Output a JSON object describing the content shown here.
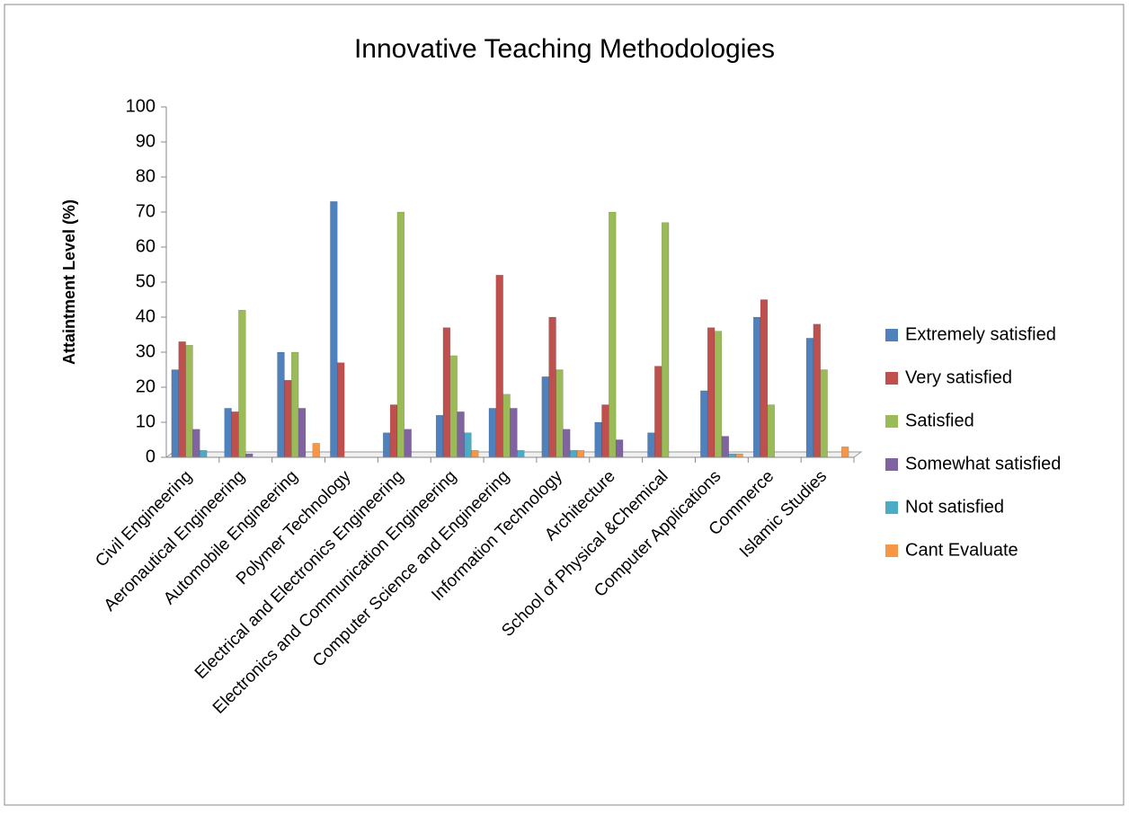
{
  "chart_data": {
    "type": "bar",
    "title": "Innovative Teaching Methodologies",
    "y_label": "Attaintment Level  (%)",
    "categories": [
      "Civil Engineering",
      "Aeronautical Engineering",
      "Automobile Engineering",
      "Polymer Technology",
      "Electrical and Electronics Engineering",
      "Electronics and Communication Engineering",
      "Computer Science and Engineering",
      "Information Technology",
      "Architecture",
      "School of Physical &Chemical",
      "Computer Applications",
      "Commerce",
      "Islamic Studies"
    ],
    "series": [
      {
        "name": "Extremely satisfied",
        "color": "#4f81bd",
        "values": [
          25,
          14,
          30,
          73,
          7,
          12,
          14,
          23,
          10,
          7,
          19,
          40,
          34
        ]
      },
      {
        "name": "Very satisfied",
        "color": "#c0504d",
        "values": [
          33,
          13,
          22,
          27,
          15,
          37,
          52,
          40,
          15,
          26,
          37,
          45,
          38
        ]
      },
      {
        "name": "Satisfied",
        "color": "#9bbb59",
        "values": [
          32,
          42,
          30,
          0,
          70,
          29,
          18,
          25,
          70,
          67,
          36,
          15,
          25
        ]
      },
      {
        "name": "Somewhat satisfied",
        "color": "#8064a2",
        "values": [
          8,
          1,
          14,
          0,
          8,
          13,
          14,
          8,
          5,
          0,
          6,
          0,
          0
        ]
      },
      {
        "name": "Not satisfied",
        "color": "#4bacc6",
        "values": [
          2,
          0,
          0,
          0,
          0,
          7,
          2,
          2,
          0,
          0,
          1,
          0,
          0
        ]
      },
      {
        "name": "Cant Evaluate",
        "color": "#f79646",
        "values": [
          0,
          0,
          4,
          0,
          0,
          2,
          0,
          2,
          0,
          0,
          1,
          0,
          3
        ]
      }
    ],
    "ylim": [
      0,
      100
    ],
    "yticks": [
      0,
      10,
      20,
      30,
      40,
      50,
      60,
      70,
      80,
      90,
      100
    ],
    "legend": "right"
  }
}
